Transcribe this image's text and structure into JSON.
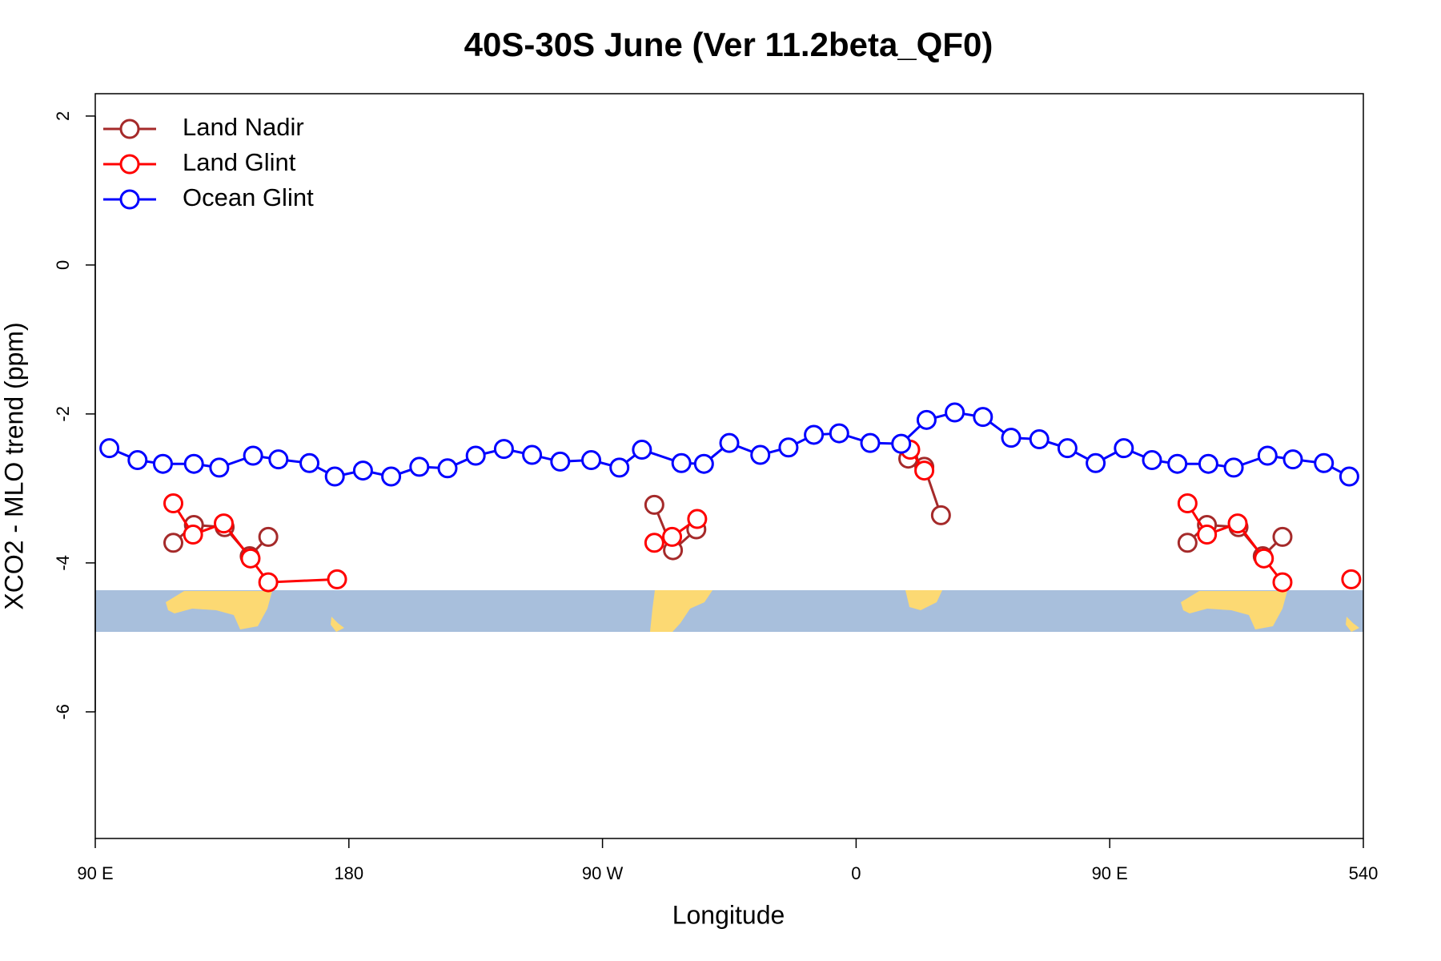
{
  "chart_data": {
    "type": "line",
    "title": "40S-30S June (Ver 11.2beta_QF0)",
    "x_label": "Longitude",
    "y_label": "XCO2 - MLO trend (ppm)",
    "xlim": [
      90,
      540
    ],
    "xticks": [
      {
        "value": 90,
        "label": "90 E"
      },
      180,
      {
        "value": 270,
        "label": "90 W"
      },
      {
        "value": 360,
        "label": "0"
      },
      {
        "value": 450,
        "label": "90 E"
      },
      540
    ],
    "ylim": [
      -7.7,
      2.3
    ],
    "yticks": [
      2,
      0,
      -2,
      -4,
      -6
    ],
    "legend": "top-left",
    "series": [
      {
        "name": "Land Nadir",
        "color": "#a52a2a",
        "x": [
          117.7,
          125,
          135.9,
          144.8,
          151.4,
          null,
          288.4,
          295,
          303.3,
          null,
          378.5,
          384.2,
          390.1,
          null,
          477.6,
          484.5,
          495.7,
          504.3,
          511.3
        ],
        "values": [
          -3.73,
          -3.49,
          -3.52,
          -3.91,
          -3.65,
          null,
          -3.22,
          -3.83,
          -3.55,
          null,
          -2.6,
          -2.71,
          -3.36,
          null,
          -3.73,
          -3.49,
          -3.52,
          -3.91,
          -3.65
        ]
      },
      {
        "name": "Land Glint",
        "color": "#ff0000",
        "x": [
          117.7,
          124.7,
          135.6,
          145.1,
          151.4,
          175.8,
          null,
          288.4,
          294.7,
          303.6,
          null,
          379.2,
          384.2,
          null,
          477.6,
          484.5,
          495.4,
          504.7,
          511.3,
          null,
          535.7
        ],
        "values": [
          -3.2,
          -3.62,
          -3.47,
          -3.94,
          -4.26,
          -4.22,
          null,
          -3.73,
          -3.65,
          -3.41,
          null,
          -2.48,
          -2.76,
          null,
          -3.2,
          -3.62,
          -3.47,
          -3.94,
          -4.26,
          null,
          -4.22
        ]
      },
      {
        "name": "Ocean Glint",
        "color": "#0000ff",
        "x": [
          95,
          105,
          114,
          125,
          134,
          146,
          155,
          166,
          175,
          185,
          195,
          205,
          215,
          225,
          235,
          245,
          255,
          266,
          276,
          284,
          298,
          306,
          315,
          326,
          336,
          345,
          354,
          365,
          376,
          385,
          395,
          405,
          415,
          425,
          435,
          445,
          455,
          465,
          474,
          485,
          494,
          506,
          515,
          526,
          535
        ],
        "values": [
          -2.46,
          -2.62,
          -2.67,
          -2.67,
          -2.72,
          -2.56,
          -2.61,
          -2.66,
          -2.84,
          -2.76,
          -2.84,
          -2.71,
          -2.73,
          -2.56,
          -2.47,
          -2.55,
          -2.64,
          -2.62,
          -2.72,
          -2.48,
          -2.66,
          -2.67,
          -2.39,
          -2.55,
          -2.45,
          -2.28,
          -2.26,
          -2.39,
          -2.4,
          -2.08,
          -1.98,
          -2.04,
          -2.32,
          -2.34,
          -2.46,
          -2.66,
          -2.46,
          -2.62,
          -2.67,
          -2.67,
          -2.72,
          -2.56,
          -2.61,
          -2.66,
          -2.84
        ]
      }
    ]
  }
}
